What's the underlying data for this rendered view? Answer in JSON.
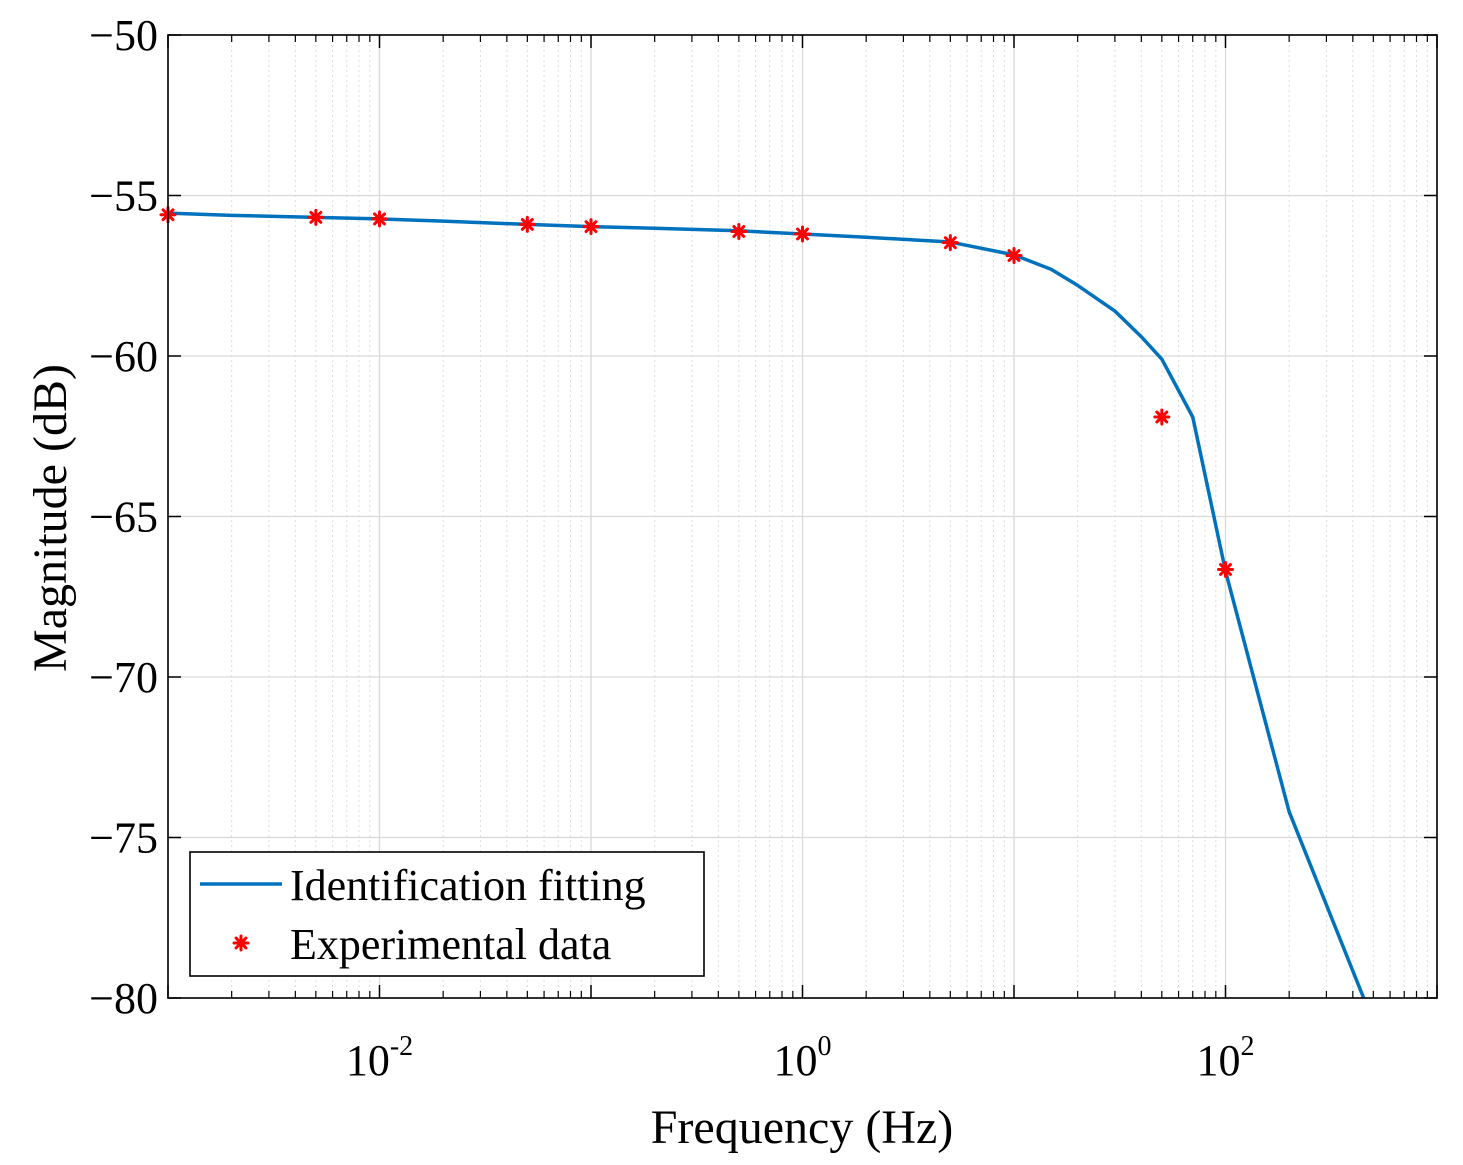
{
  "chart_data": {
    "type": "line",
    "title": "",
    "xlabel": "Frequency (Hz)",
    "ylabel": "Magnitude (dB)",
    "xscale": "log",
    "xlim": [
      0.001,
      1000
    ],
    "ylim": [
      -80,
      -50
    ],
    "grid": true,
    "x_tick_labels": [
      {
        "base": "10",
        "exp": "-2",
        "value": 0.01
      },
      {
        "base": "10",
        "exp": "0",
        "value": 1
      },
      {
        "base": "10",
        "exp": "2",
        "value": 100
      }
    ],
    "y_ticks": [
      -50,
      -55,
      -60,
      -65,
      -70,
      -75,
      -80
    ],
    "y_tick_labels": [
      "−50",
      "−55",
      "−60",
      "−65",
      "−70",
      "−75",
      "−80"
    ],
    "legend_position": "bottom-left",
    "colors": {
      "fit": "#0072BD",
      "data": "#FF0000"
    },
    "series": [
      {
        "name": "Identification fitting",
        "style": "line",
        "x": [
          0.001,
          0.002,
          0.005,
          0.01,
          0.02,
          0.05,
          0.1,
          0.2,
          0.5,
          1,
          2,
          5,
          10,
          15,
          20,
          30,
          40,
          50,
          70,
          100,
          200,
          450
        ],
        "y": [
          -55.55,
          -55.62,
          -55.68,
          -55.73,
          -55.8,
          -55.9,
          -55.97,
          -56.02,
          -56.1,
          -56.2,
          -56.3,
          -56.45,
          -56.85,
          -57.3,
          -57.8,
          -58.6,
          -59.4,
          -60.1,
          -61.9,
          -66.7,
          -74.2,
          -80.0
        ]
      },
      {
        "name": "Experimental data",
        "style": "marker",
        "x": [
          0.001,
          0.005,
          0.01,
          0.05,
          0.1,
          0.5,
          1,
          5,
          10,
          50,
          100
        ],
        "y": [
          -55.6,
          -55.68,
          -55.73,
          -55.9,
          -55.97,
          -56.12,
          -56.2,
          -56.47,
          -56.87,
          -61.9,
          -66.65
        ]
      }
    ]
  }
}
